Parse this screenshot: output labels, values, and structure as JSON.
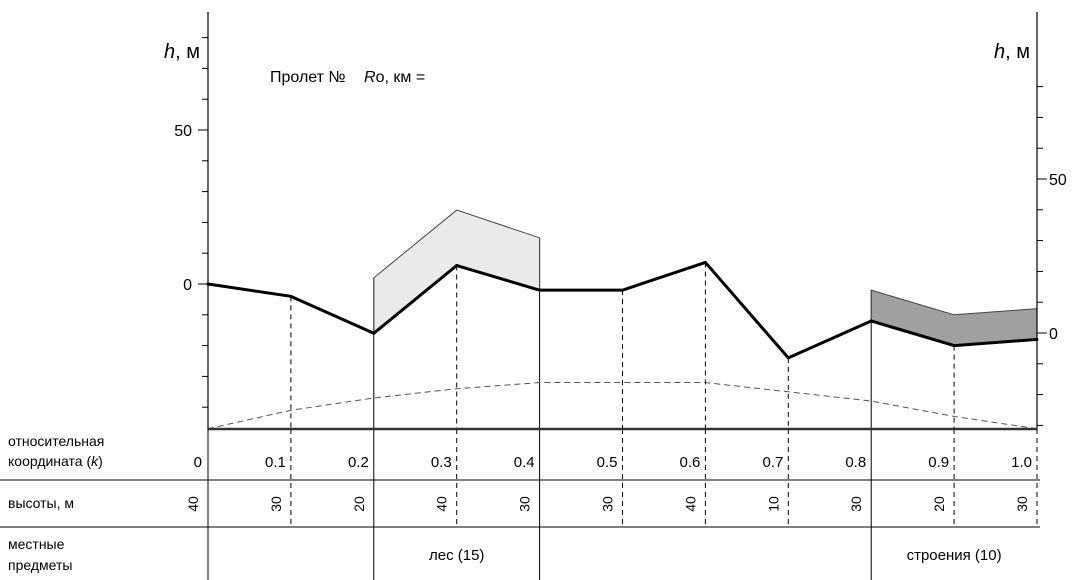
{
  "title": {
    "prefix": "Пролет №",
    "r_symbol": "R",
    "r_sub": "o",
    "r_suffix": ", км ="
  },
  "left_axis": {
    "symbol": "h",
    "unit": ", м",
    "ticks": [
      0,
      50
    ]
  },
  "right_axis": {
    "symbol": "h",
    "unit": ", м",
    "ticks": [
      0,
      50
    ]
  },
  "rows": {
    "coordinate": {
      "label_line1": "относительная",
      "label_line2_pre": "координата (",
      "label_line2_k": "k",
      "label_line2_post": ")"
    },
    "heights": {
      "label": "высоты, м"
    },
    "objects": {
      "label_line1": "местные",
      "label_line2": "предметы"
    }
  },
  "chart_data": {
    "type": "line",
    "x": [
      0,
      0.1,
      0.2,
      0.3,
      0.4,
      0.5,
      0.6,
      0.7,
      0.8,
      0.9,
      1.0
    ],
    "x_labels": [
      "0",
      "0.1",
      "0.2",
      "0.3",
      "0.4",
      "0.5",
      "0.6",
      "0.7",
      "0.8",
      "0.9",
      "1.0"
    ],
    "terrain_h": [
      0,
      -4,
      -16,
      6,
      -2,
      -2,
      7,
      -24,
      -12,
      -20,
      -18
    ],
    "earth_curvature_h": [
      -47,
      -41,
      -37,
      -34,
      -32,
      -32,
      -32,
      -35,
      -38,
      -43,
      -47
    ],
    "heights": [
      "40",
      "30",
      "20",
      "40",
      "30",
      "30",
      "40",
      "10",
      "30",
      "20",
      "30"
    ],
    "objects": [
      {
        "label": "лес (15)",
        "from": 0.2,
        "to": 0.4,
        "tops": [
          2,
          24,
          15
        ],
        "color": "#eaeaea"
      },
      {
        "label": "строения (10)",
        "from": 0.8,
        "to": 1.0,
        "tops": [
          -2,
          -10,
          -8
        ],
        "color": "#a0a0a0"
      }
    ],
    "left_ylim": [
      -47,
      90
    ],
    "right_ylim": [
      -40,
      90
    ]
  }
}
